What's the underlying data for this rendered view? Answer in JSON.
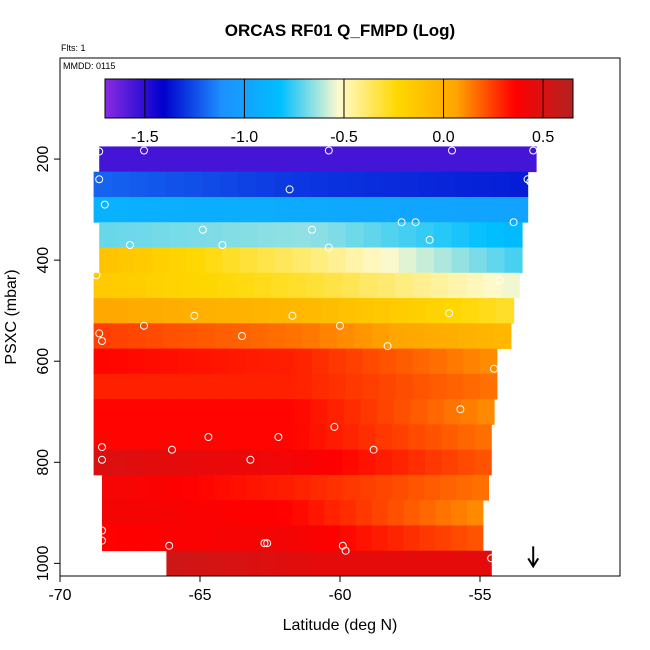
{
  "chart_data": {
    "type": "heatmap",
    "title": "ORCAS RF01 Q_FMPD (Log)",
    "annotations": {
      "flights": "Flts: 1",
      "date": "MMDD: 0115"
    },
    "xlabel": "Latitude (deg N)",
    "ylabel": "PSXC (mbar)",
    "xlim": [
      -70,
      -50
    ],
    "ylim": [
      1025,
      0
    ],
    "x_ticks": [
      -70,
      -65,
      -60,
      -55
    ],
    "x_tick_labels": [
      "-70",
      "-65",
      "-60",
      "-55"
    ],
    "y_ticks": [
      200,
      400,
      600,
      800,
      1000
    ],
    "y_tick_labels": [
      "200",
      "400",
      "600",
      "800",
      "1000"
    ],
    "colorbar": {
      "range": [
        -1.7,
        0.65
      ],
      "ticks": [
        -1.5,
        -1.0,
        -0.5,
        0.0,
        0.5
      ],
      "tick_labels": [
        "-1.5",
        "-1.0",
        "-0.5",
        "0.0",
        "0.5"
      ],
      "stops": [
        "#8a2be2",
        "#0000cd",
        "#1e90ff",
        "#00bfff",
        "#fffacd",
        "#ffd700",
        "#ffa500",
        "#ff0000",
        "#b22222"
      ]
    },
    "marker": {
      "label": "arrow",
      "x": -53.1,
      "y": 1000
    },
    "bands": [
      {
        "p": [
          175,
          225
        ],
        "lat": [
          -68.6,
          -53.0
        ],
        "values": [
          -1.55,
          -1.55,
          -1.55
        ]
      },
      {
        "p": [
          225,
          275
        ],
        "lat": [
          -68.8,
          -53.3
        ],
        "values": [
          -1.2,
          -1.3,
          -1.35
        ]
      },
      {
        "p": [
          275,
          325
        ],
        "lat": [
          -68.8,
          -53.3
        ],
        "values": [
          -0.9,
          -0.95,
          -1.0
        ]
      },
      {
        "p": [
          325,
          375
        ],
        "lat": [
          -68.6,
          -53.5
        ],
        "values": [
          -0.7,
          -0.65,
          -0.85
        ]
      },
      {
        "p": [
          375,
          425
        ],
        "lat": [
          -68.6,
          -53.5
        ],
        "values": [
          -0.1,
          -0.4,
          -0.75
        ]
      },
      {
        "p": [
          425,
          475
        ],
        "lat": [
          -68.8,
          -53.6
        ],
        "values": [
          -0.15,
          -0.3,
          -0.55
        ]
      },
      {
        "p": [
          475,
          525
        ],
        "lat": [
          -68.8,
          -53.8
        ],
        "values": [
          0.05,
          -0.05,
          -0.3
        ]
      },
      {
        "p": [
          525,
          575
        ],
        "lat": [
          -68.8,
          -53.9
        ],
        "values": [
          0.25,
          0.15,
          -0.05
        ]
      },
      {
        "p": [
          575,
          625
        ],
        "lat": [
          -68.8,
          -54.4
        ],
        "values": [
          0.35,
          0.3,
          0.1
        ]
      },
      {
        "p": [
          625,
          675
        ],
        "lat": [
          -68.8,
          -54.4
        ],
        "values": [
          0.3,
          0.3,
          0.15
        ]
      },
      {
        "p": [
          675,
          725
        ],
        "lat": [
          -68.8,
          -54.5
        ],
        "values": [
          0.35,
          0.35,
          0.1
        ]
      },
      {
        "p": [
          725,
          775
        ],
        "lat": [
          -68.8,
          -54.6
        ],
        "values": [
          0.35,
          0.35,
          0.15
        ]
      },
      {
        "p": [
          775,
          825
        ],
        "lat": [
          -68.8,
          -54.6
        ],
        "values": [
          0.5,
          0.4,
          0.2
        ]
      },
      {
        "p": [
          825,
          875
        ],
        "lat": [
          -68.5,
          -54.7
        ],
        "values": [
          0.4,
          0.3,
          0.15
        ]
      },
      {
        "p": [
          875,
          925
        ],
        "lat": [
          -68.5,
          -54.9
        ],
        "values": [
          0.4,
          0.35,
          0.1
        ]
      },
      {
        "p": [
          925,
          975
        ],
        "lat": [
          -68.5,
          -54.9
        ],
        "values": [
          0.35,
          0.4,
          0.2
        ]
      },
      {
        "p": [
          975,
          1025
        ],
        "lat": [
          -66.2,
          -54.6
        ],
        "values": [
          0.55,
          0.45,
          0.45
        ]
      }
    ],
    "points": [
      [
        -68.6,
        185
      ],
      [
        -67.0,
        183
      ],
      [
        -60.4,
        183
      ],
      [
        -56.0,
        183
      ],
      [
        -53.1,
        183
      ],
      [
        -68.6,
        240
      ],
      [
        -61.8,
        260
      ],
      [
        -53.3,
        240
      ],
      [
        -68.4,
        290
      ],
      [
        -53.2,
        245
      ],
      [
        -57.8,
        325
      ],
      [
        -57.3,
        325
      ],
      [
        -53.8,
        325
      ],
      [
        -64.9,
        340
      ],
      [
        -61.0,
        340
      ],
      [
        -56.8,
        360
      ],
      [
        -67.5,
        370
      ],
      [
        -64.2,
        370
      ],
      [
        -60.4,
        375
      ],
      [
        -54.3,
        440
      ],
      [
        -68.7,
        430
      ],
      [
        -65.2,
        510
      ],
      [
        -61.7,
        510
      ],
      [
        -56.1,
        505
      ],
      [
        -68.6,
        545
      ],
      [
        -67.0,
        530
      ],
      [
        -63.5,
        550
      ],
      [
        -60.0,
        530
      ],
      [
        -58.3,
        570
      ],
      [
        -68.5,
        560
      ],
      [
        -54.5,
        615
      ],
      [
        -55.7,
        695
      ],
      [
        -64.7,
        750
      ],
      [
        -60.2,
        730
      ],
      [
        -66.0,
        775
      ],
      [
        -68.5,
        770
      ],
      [
        -62.2,
        750
      ],
      [
        -58.8,
        775
      ],
      [
        -68.5,
        795
      ],
      [
        -63.2,
        795
      ],
      [
        -54.3,
        835
      ],
      [
        -54.6,
        940
      ],
      [
        -68.5,
        935
      ],
      [
        -68.5,
        955
      ],
      [
        -66.1,
        965
      ],
      [
        -62.7,
        960
      ],
      [
        -62.6,
        960
      ],
      [
        -59.9,
        965
      ],
      [
        -59.8,
        975
      ],
      [
        -54.6,
        990
      ]
    ]
  }
}
